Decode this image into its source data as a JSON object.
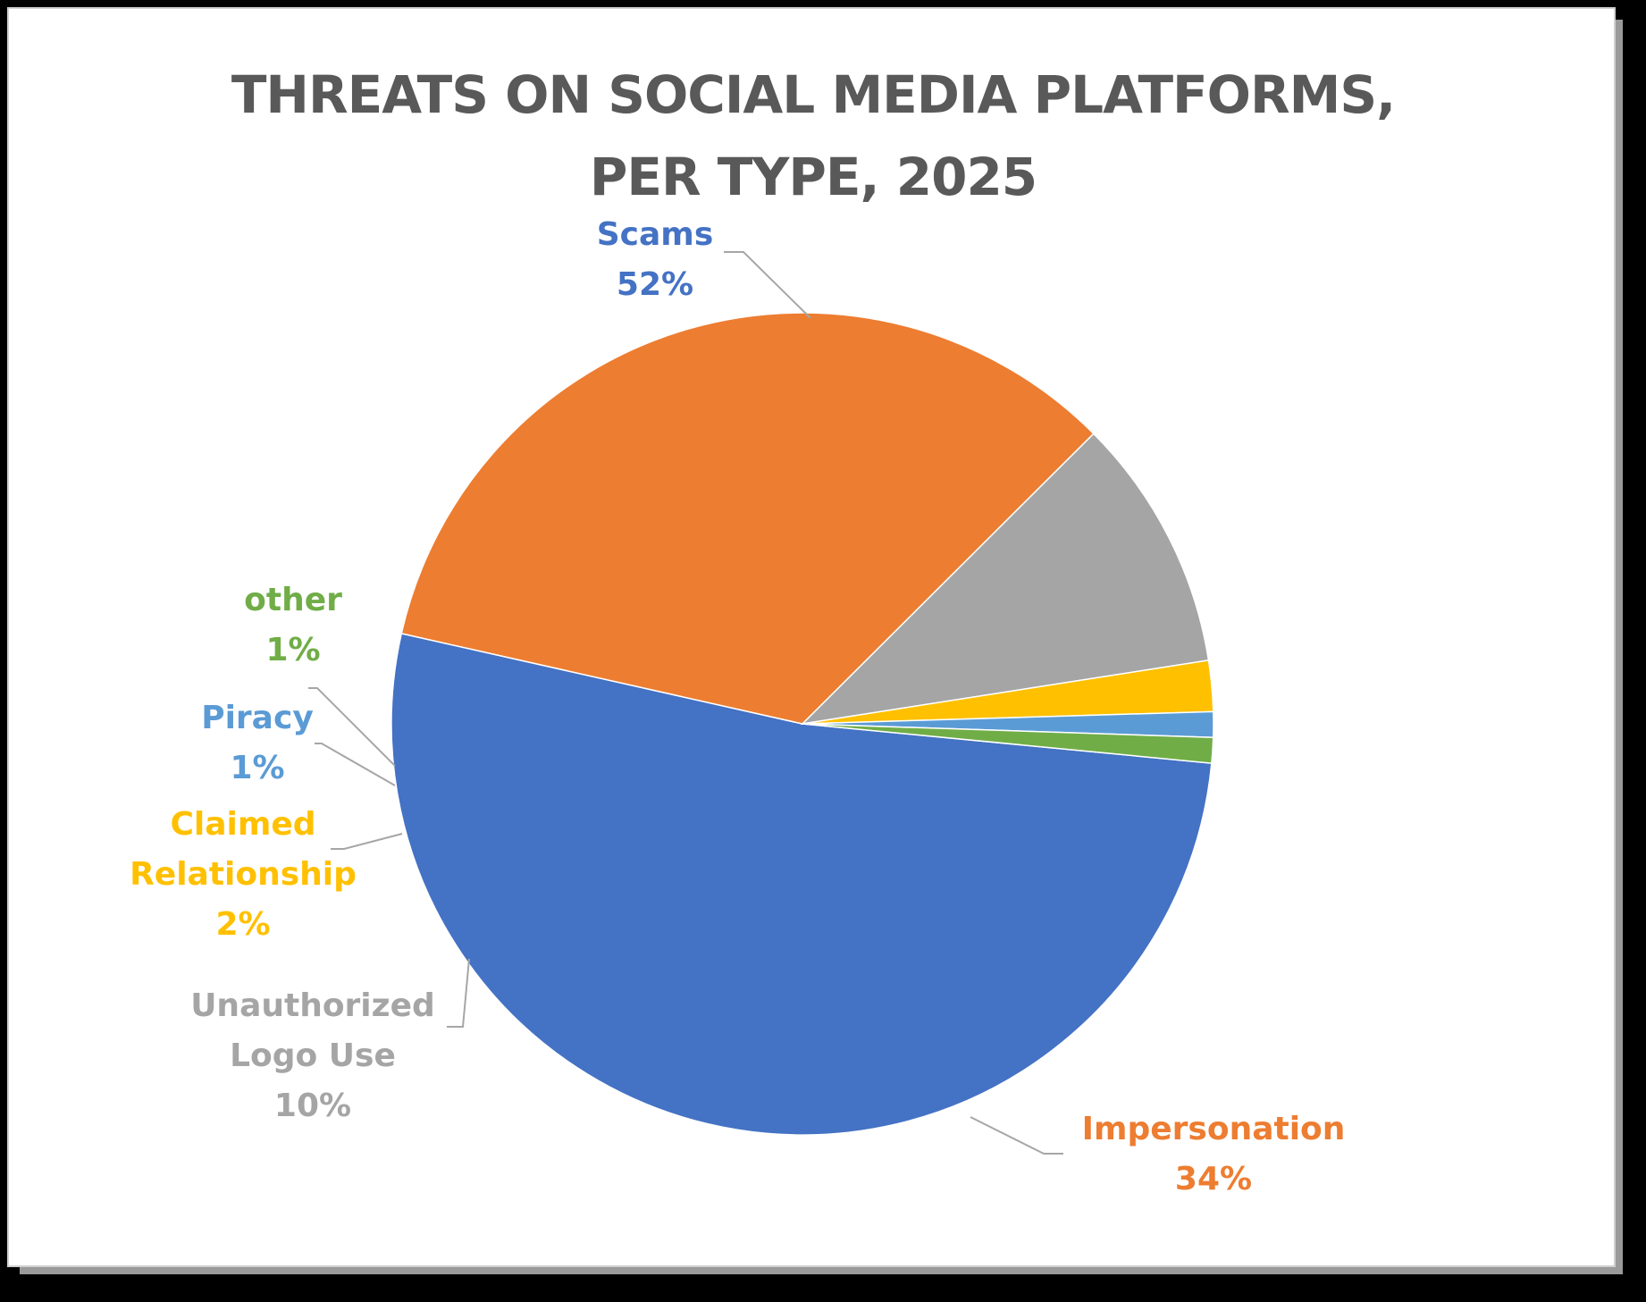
{
  "chart_data": {
    "type": "pie",
    "title": "THREATS ON SOCIAL MEDIA PLATFORMS, PER TYPE, 2025",
    "title_lines": [
      "THREATS ON SOCIAL MEDIA PLATFORMS,",
      "PER TYPE, 2025"
    ],
    "legend": "none",
    "slices": [
      {
        "label_lines": [
          "Scams"
        ],
        "value": 52,
        "value_label": "52%",
        "color": "#4472C4"
      },
      {
        "label_lines": [
          "Impersonation"
        ],
        "value": 34,
        "value_label": "34%",
        "color": "#ED7D31"
      },
      {
        "label_lines": [
          "Unauthorized",
          "Logo Use"
        ],
        "value": 10,
        "value_label": "10%",
        "color": "#A5A5A5"
      },
      {
        "label_lines": [
          "Claimed",
          "Relationship"
        ],
        "value": 2,
        "value_label": "2%",
        "color": "#FFC000"
      },
      {
        "label_lines": [
          "Piracy"
        ],
        "value": 1,
        "value_label": "1%",
        "color": "#5B9BD5"
      },
      {
        "label_lines": [
          "other"
        ],
        "value": 1,
        "value_label": "1%",
        "color": "#70AD47"
      }
    ]
  }
}
